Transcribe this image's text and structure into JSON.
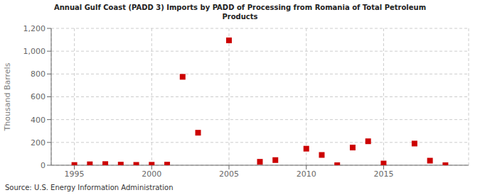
{
  "chart_data": {
    "type": "scatter",
    "title": "Annual Gulf Coast (PADD 3) Imports by PADD of Processing from Romania of Total Petroleum\nProducts",
    "ylabel": "Thousand Barrels",
    "annotation": "Source: U.S. Energy Information Administration",
    "x": [
      1995,
      1996,
      1997,
      1998,
      1999,
      2000,
      2001,
      2002,
      2003,
      2005,
      2007,
      2008,
      2010,
      2011,
      2012,
      2013,
      2014,
      2015,
      2017,
      2018,
      2019
    ],
    "values": [
      2,
      8,
      10,
      5,
      3,
      4,
      5,
      775,
      285,
      1095,
      30,
      45,
      145,
      90,
      0,
      155,
      210,
      15,
      190,
      40,
      0
    ],
    "color": "#cc0000",
    "marker": "square",
    "xlim": [
      1993.5,
      2020.5
    ],
    "xticks": [
      1995,
      2000,
      2005,
      2010,
      2015
    ],
    "ylim": [
      0,
      1200
    ],
    "yticks": [
      0,
      200,
      400,
      600,
      {
        "value": 800,
        "label": "800"
      },
      {
        "value": 1000,
        "label": "1,000"
      },
      {
        "value": 1200,
        "label": "1,200"
      }
    ],
    "grid": true
  }
}
